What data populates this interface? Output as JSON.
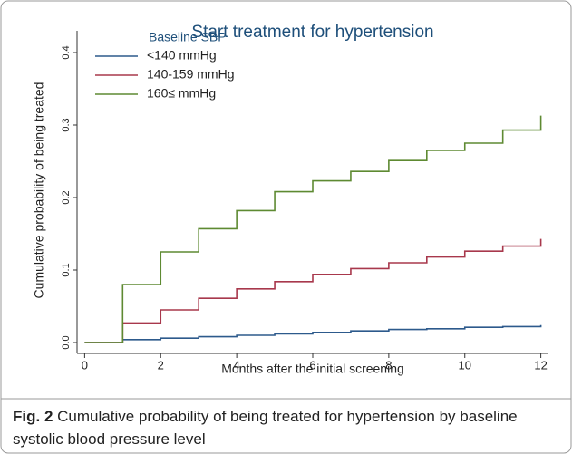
{
  "chart_data": {
    "type": "line",
    "step": "post",
    "title": "Start treatment for hypertension",
    "xlabel": "Months after the initial screening",
    "ylabel": "Cumulative probability of being treated",
    "legend_title": "Baseline SBP",
    "x": [
      0,
      1,
      2,
      3,
      4,
      5,
      6,
      7,
      8,
      9,
      10,
      11,
      12
    ],
    "series": [
      {
        "name": "<140 mmHg",
        "color": "#2d5a8c",
        "values": [
          0,
          0.004,
          0.006,
          0.008,
          0.01,
          0.012,
          0.014,
          0.016,
          0.018,
          0.019,
          0.021,
          0.022,
          0.024
        ]
      },
      {
        "name": "140-159 mmHg",
        "color": "#a8384c",
        "values": [
          0,
          0.027,
          0.045,
          0.061,
          0.074,
          0.084,
          0.094,
          0.102,
          0.11,
          0.118,
          0.126,
          0.133,
          0.143
        ]
      },
      {
        "name": "160≤ mmHg",
        "color": "#5e8a32",
        "values": [
          0,
          0.08,
          0.125,
          0.157,
          0.182,
          0.208,
          0.223,
          0.236,
          0.251,
          0.265,
          0.275,
          0.293,
          0.313
        ]
      }
    ],
    "xlim": [
      -0.2,
      12.2
    ],
    "xticks": [
      0,
      2,
      4,
      6,
      8,
      10,
      12
    ],
    "ylim": [
      -0.015,
      0.43
    ],
    "yticks": [
      {
        "value": 0,
        "label": "0.0"
      },
      0.1,
      0.2,
      0.3,
      0.4
    ],
    "legend": "upper left"
  },
  "caption": {
    "label": "Fig. 2",
    "text": "Cumulative probability of being treated for hypertension by baseline systolic blood pressure level"
  }
}
